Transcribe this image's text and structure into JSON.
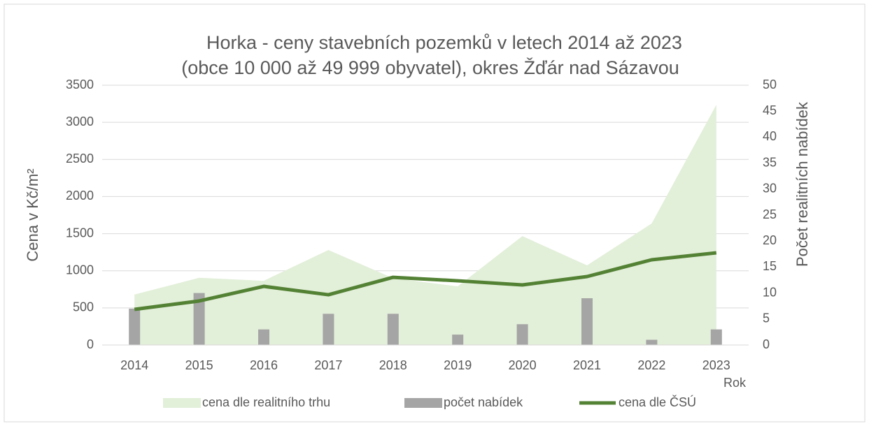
{
  "chart_data": {
    "type": "combo",
    "title": [
      "Horka - ceny stavebních pozemků v letech 2014 až 2023",
      "(obce 10 000 až 49 999 obyvatel), okres Žďár nad Sázavou"
    ],
    "y_label": "Cena v Kč/m²",
    "y2_label": "Počet realitních nabídek",
    "x_label": "Rok",
    "categories": [
      "2014",
      "2015",
      "2016",
      "2017",
      "2018",
      "2019",
      "2020",
      "2021",
      "2022",
      "2023"
    ],
    "series": [
      {
        "name": "cena dle realitního trhu",
        "type": "area",
        "color": "#e2efd9",
        "values": [
          680,
          905,
          865,
          1280,
          900,
          790,
          1467,
          1072,
          1637,
          3236
        ]
      },
      {
        "name": "počet nabídek",
        "type": "bar",
        "axis": "y2",
        "color": "#a5a5a5",
        "values": [
          7,
          10,
          3,
          6,
          6,
          2,
          4,
          9,
          1,
          3
        ]
      },
      {
        "name": "cena dle ČSÚ",
        "type": "line",
        "color": "#548235",
        "values": [
          480,
          593,
          790,
          677,
          912,
          865,
          809,
          922,
          1148,
          1242
        ]
      }
    ],
    "ylim": [
      0,
      3500
    ],
    "yticks": [
      0,
      500,
      1000,
      1500,
      2000,
      2500,
      3000,
      3500
    ],
    "y2lim": [
      0,
      50
    ],
    "y2ticks": [
      0,
      5,
      10,
      15,
      20,
      25,
      30,
      35,
      40,
      45,
      50
    ],
    "grid": true,
    "legend": "bottom"
  }
}
